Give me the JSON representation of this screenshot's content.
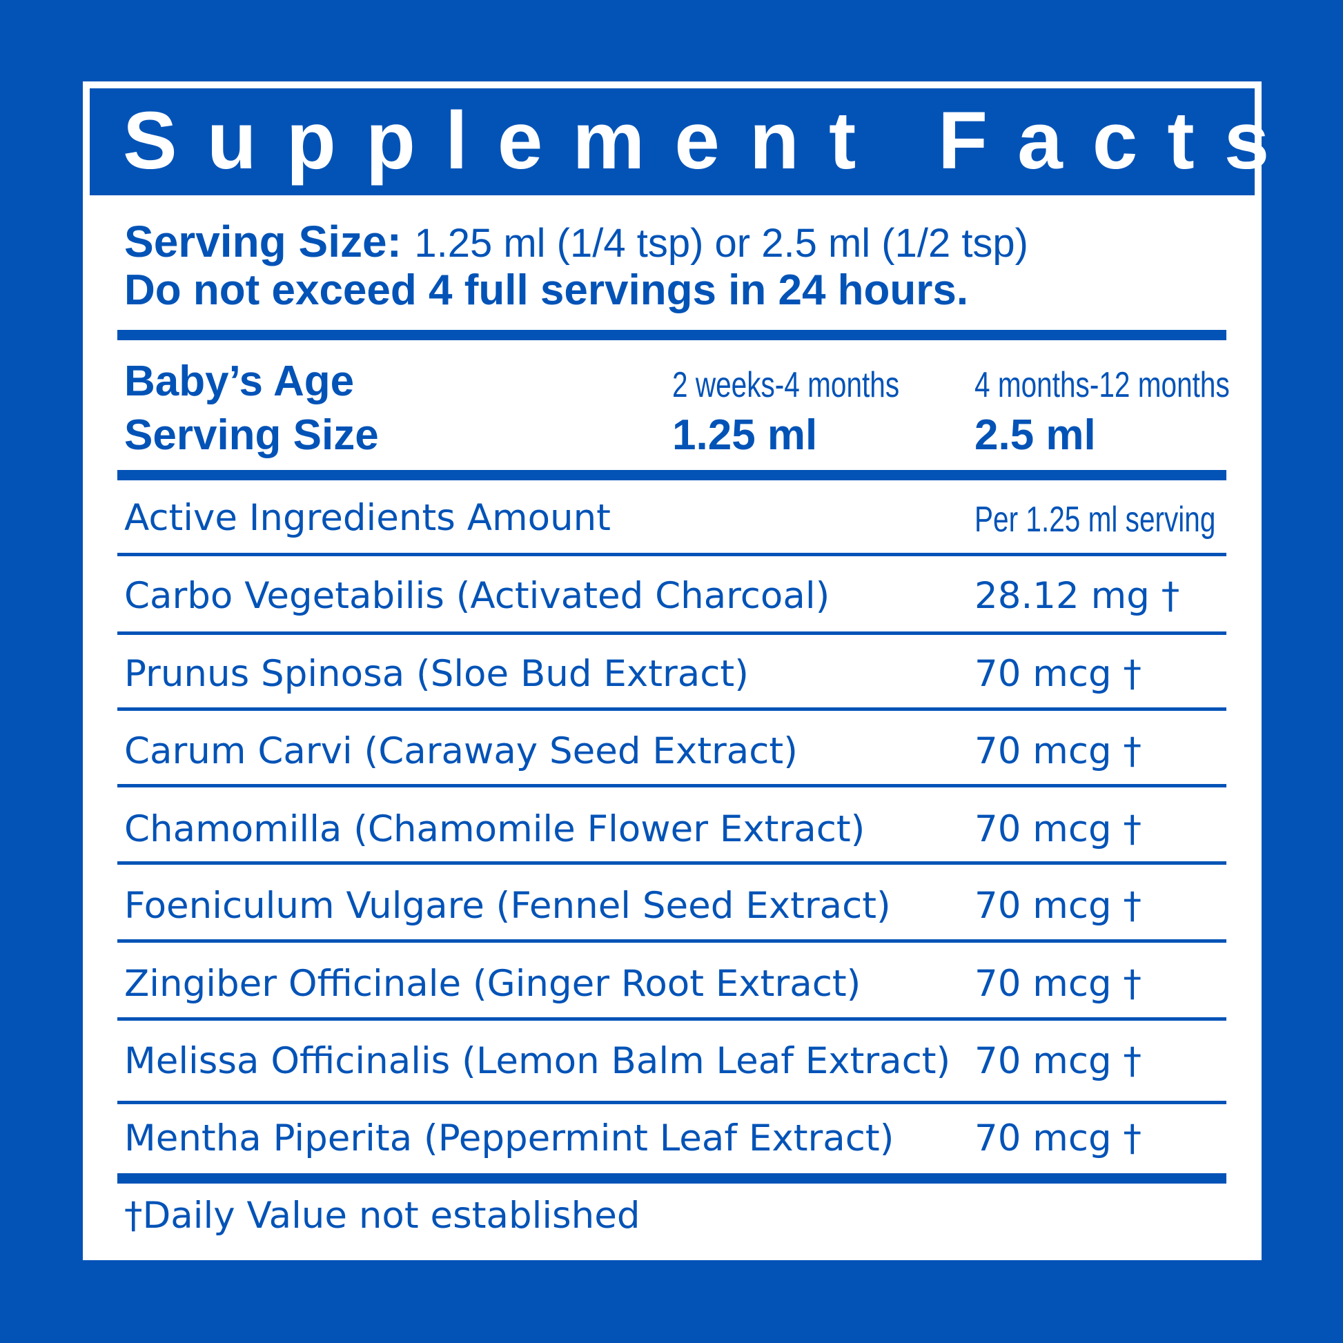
{
  "title": "Supplement Facts",
  "serving": {
    "label": "Serving Size:",
    "value": "1.25 ml (1/4 tsp) or 2.5 ml (1/2 tsp)",
    "warning": "Do not exceed 4 full servings in 24 hours."
  },
  "age_table": {
    "age_label": "Baby’s Age",
    "size_label": "Serving Size",
    "columns": [
      {
        "age": "2 weeks-4 months",
        "size": "1.25 ml"
      },
      {
        "age": "4 months-12 months",
        "size": "2.5 ml"
      }
    ]
  },
  "ingredients_header": {
    "label": "Active Ingredients Amount",
    "amount": "Per 1.25 ml serving"
  },
  "ingredients": [
    {
      "name": "Carbo Vegetabilis (Activated Charcoal)",
      "amount": "28.12 mg †"
    },
    {
      "name": "Prunus Spinosa (Sloe Bud Extract)",
      "amount": "70 mcg †"
    },
    {
      "name": "Carum Carvi (Caraway Seed Extract)",
      "amount": "70 mcg †"
    },
    {
      "name": "Chamomilla (Chamomile Flower Extract)",
      "amount": "70 mcg †"
    },
    {
      "name": "Foeniculum Vulgare (Fennel Seed Extract)",
      "amount": "70 mcg †"
    },
    {
      "name": "Zingiber Officinale (Ginger Root Extract)",
      "amount": "70 mcg †"
    },
    {
      "name": "Melissa Officinalis (Lemon Balm Leaf Extract)",
      "amount": "70 mcg †"
    },
    {
      "name": "Mentha Piperita (Peppermint Leaf Extract)",
      "amount": "70 mcg †"
    }
  ],
  "footnote": "†Daily Value not established",
  "colors": {
    "brand_blue": "#0353b7",
    "background": "#ffffff"
  }
}
